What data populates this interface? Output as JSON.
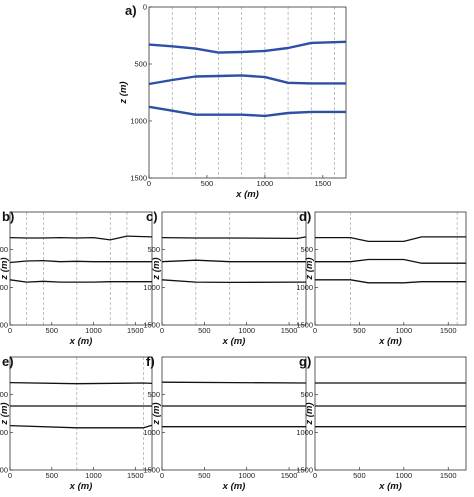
{
  "chart_data": [
    {
      "panel_label": "a)",
      "type": "line",
      "xlabel": "x (m)",
      "ylabel": "z (m)",
      "xlim": [
        0,
        1700
      ],
      "ylim": [
        1500,
        0
      ],
      "x_ticks": [
        "0",
        "500",
        "1000",
        "1500"
      ],
      "y_ticks": [
        "0",
        "500",
        "1000",
        "1500"
      ],
      "line_color": "#2e4fa3",
      "vertical_guides": [
        200,
        400,
        600,
        800,
        1000,
        1200,
        1400,
        1600
      ],
      "series": [
        {
          "x": [
            0,
            200,
            400,
            600,
            800,
            1000,
            1200,
            1400,
            1700
          ],
          "values": [
            330,
            345,
            365,
            400,
            395,
            385,
            360,
            315,
            305
          ]
        },
        {
          "x": [
            0,
            200,
            400,
            600,
            800,
            1000,
            1200,
            1400,
            1700
          ],
          "values": [
            675,
            640,
            610,
            605,
            600,
            615,
            665,
            670,
            670
          ]
        },
        {
          "x": [
            0,
            200,
            400,
            600,
            800,
            1000,
            1200,
            1400,
            1700
          ],
          "values": [
            875,
            910,
            945,
            945,
            945,
            955,
            930,
            920,
            920
          ]
        }
      ]
    },
    {
      "panel_label": "b)",
      "type": "line",
      "xlabel": "x (m)",
      "ylabel": "z (m)",
      "xlim": [
        0,
        1700
      ],
      "ylim": [
        1500,
        0
      ],
      "x_ticks": [
        "0",
        "500",
        "1000",
        "1500"
      ],
      "y_ticks": [
        "500",
        "1000",
        "1500"
      ],
      "line_color": "#111111",
      "vertical_guides": [
        200,
        400,
        800,
        1200,
        1400
      ],
      "series": [
        {
          "x": [
            0,
            200,
            400,
            600,
            800,
            1000,
            1200,
            1400,
            1700
          ],
          "values": [
            340,
            345,
            345,
            340,
            345,
            340,
            370,
            320,
            330
          ]
        },
        {
          "x": [
            0,
            200,
            400,
            600,
            800,
            1000,
            1200,
            1400,
            1700
          ],
          "values": [
            670,
            650,
            645,
            660,
            655,
            660,
            660,
            660,
            660
          ]
        },
        {
          "x": [
            0,
            200,
            400,
            600,
            800,
            1000,
            1200,
            1400,
            1700
          ],
          "values": [
            900,
            930,
            920,
            930,
            930,
            930,
            925,
            925,
            925
          ]
        }
      ]
    },
    {
      "panel_label": "c)",
      "type": "line",
      "xlabel": "x (m)",
      "ylabel": "z (m)",
      "xlim": [
        0,
        1700
      ],
      "ylim": [
        1500,
        0
      ],
      "x_ticks": [
        "0",
        "500",
        "1000",
        "1500"
      ],
      "y_ticks": [
        "500",
        "1000",
        "1500"
      ],
      "line_color": "#111111",
      "vertical_guides": [
        400,
        800,
        1600
      ],
      "series": [
        {
          "x": [
            0,
            400,
            800,
            1600,
            1700
          ],
          "values": [
            340,
            345,
            345,
            350,
            330
          ]
        },
        {
          "x": [
            0,
            400,
            800,
            1600,
            1700
          ],
          "values": [
            660,
            640,
            660,
            660,
            660
          ]
        },
        {
          "x": [
            0,
            400,
            800,
            1600,
            1700
          ],
          "values": [
            900,
            930,
            935,
            930,
            930
          ]
        }
      ]
    },
    {
      "panel_label": "d)",
      "type": "line",
      "xlabel": "x (m)",
      "ylabel": "z (m)",
      "xlim": [
        0,
        1700
      ],
      "ylim": [
        1500,
        0
      ],
      "x_ticks": [
        "0",
        "500",
        "1000",
        "1500"
      ],
      "y_ticks": [
        "500",
        "1000",
        "1500"
      ],
      "line_color": "#111111",
      "vertical_guides": [
        400,
        1600
      ],
      "series": [
        {
          "x": [
            0,
            400,
            600,
            1000,
            1200,
            1600,
            1700
          ],
          "values": [
            340,
            340,
            390,
            390,
            330,
            330,
            330
          ]
        },
        {
          "x": [
            0,
            400,
            600,
            1000,
            1200,
            1600,
            1700
          ],
          "values": [
            660,
            660,
            630,
            630,
            680,
            680,
            680
          ]
        },
        {
          "x": [
            0,
            400,
            600,
            1000,
            1200,
            1600,
            1700
          ],
          "values": [
            900,
            900,
            940,
            940,
            925,
            925,
            925
          ]
        }
      ]
    },
    {
      "panel_label": "e)",
      "type": "line",
      "xlabel": "x (m)",
      "ylabel": "z (m)",
      "xlim": [
        0,
        1700
      ],
      "ylim": [
        1500,
        0
      ],
      "x_ticks": [
        "0",
        "500",
        "1000",
        "1500"
      ],
      "y_ticks": [
        "500",
        "1000",
        "1500"
      ],
      "line_color": "#111111",
      "vertical_guides": [
        800,
        1600
      ],
      "series": [
        {
          "x": [
            0,
            800,
            1600,
            1700
          ],
          "values": [
            340,
            355,
            345,
            350
          ]
        },
        {
          "x": [
            0,
            800,
            1600,
            1700
          ],
          "values": [
            650,
            650,
            650,
            650
          ]
        },
        {
          "x": [
            0,
            800,
            1600,
            1700
          ],
          "values": [
            910,
            940,
            940,
            905
          ]
        }
      ]
    },
    {
      "panel_label": "f)",
      "type": "line",
      "xlabel": "x (m)",
      "ylabel": "z (m)",
      "xlim": [
        0,
        1700
      ],
      "ylim": [
        1500,
        0
      ],
      "x_ticks": [
        "0",
        "500",
        "1000",
        "1500"
      ],
      "y_ticks": [
        "500",
        "1000",
        "1500"
      ],
      "line_color": "#111111",
      "vertical_guides": [],
      "series": [
        {
          "x": [
            0,
            1700
          ],
          "values": [
            335,
            345
          ]
        },
        {
          "x": [
            0,
            1700
          ],
          "values": [
            650,
            650
          ]
        },
        {
          "x": [
            0,
            1700
          ],
          "values": [
            925,
            925
          ]
        }
      ]
    },
    {
      "panel_label": "g)",
      "type": "line",
      "xlabel": "x (m)",
      "ylabel": "z (m)",
      "xlim": [
        0,
        1700
      ],
      "ylim": [
        1500,
        0
      ],
      "x_ticks": [
        "0",
        "500",
        "1000",
        "1500"
      ],
      "y_ticks": [
        "500",
        "1000",
        "1500"
      ],
      "line_color": "#111111",
      "vertical_guides": [],
      "series": [
        {
          "x": [
            0,
            1700
          ],
          "values": [
            345,
            345
          ]
        },
        {
          "x": [
            0,
            1700
          ],
          "values": [
            650,
            650
          ]
        },
        {
          "x": [
            0,
            1700
          ],
          "values": [
            925,
            925
          ]
        }
      ]
    }
  ]
}
